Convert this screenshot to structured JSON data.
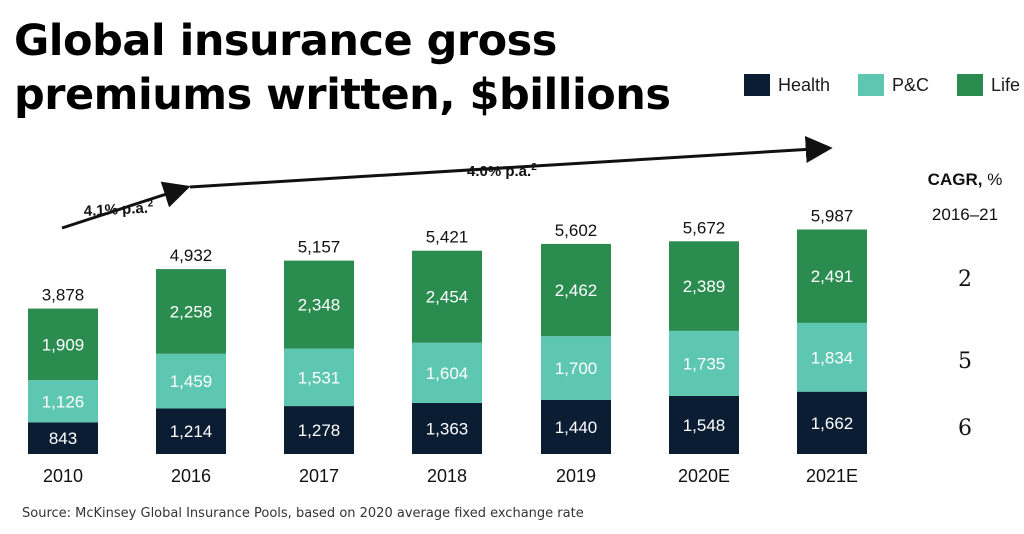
{
  "title": "Global insurance gross premiums written, $billions",
  "legend": [
    {
      "name": "Health",
      "color": "#0b1d33"
    },
    {
      "name": "P&C",
      "color": "#5ec7b1"
    },
    {
      "name": "Life",
      "color": "#2b8c50"
    }
  ],
  "cagr_header": {
    "label": "CAGR,",
    "unit": "%",
    "period": "2016–21"
  },
  "cagr_values": {
    "life": "2",
    "pc": "5",
    "health": "6"
  },
  "growth_annotations": [
    {
      "label": "4.1% p.a.",
      "superscript": "2"
    },
    {
      "label": "4.0% p.a.",
      "superscript": "2"
    }
  ],
  "source": "Source: McKinsey Global Insurance Pools, based on 2020 average fixed exchange rate",
  "chart_data": {
    "type": "bar",
    "stacked": true,
    "categories": [
      "2010",
      "2016",
      "2017",
      "2018",
      "2019",
      "2020E",
      "2021E"
    ],
    "series": [
      {
        "name": "Health",
        "color": "#0b1d33",
        "values": [
          843,
          1214,
          1278,
          1363,
          1440,
          1548,
          1662
        ],
        "labels": [
          "843",
          "1,214",
          "1,278",
          "1,363",
          "1,440",
          "1,548",
          "1,662"
        ]
      },
      {
        "name": "P&C",
        "color": "#5ec7b1",
        "values": [
          1126,
          1459,
          1531,
          1604,
          1700,
          1735,
          1834
        ],
        "labels": [
          "1,126",
          "1,459",
          "1,531",
          "1,604",
          "1,700",
          "1,735",
          "1,834"
        ]
      },
      {
        "name": "Life",
        "color": "#2b8c50",
        "values": [
          1909,
          2258,
          2348,
          2454,
          2462,
          2389,
          2491
        ],
        "labels": [
          "1,909",
          "2,258",
          "2,348",
          "2,454",
          "2,462",
          "2,389",
          "2,491"
        ]
      }
    ],
    "totals": [
      3878,
      4932,
      5157,
      5421,
      5602,
      5672,
      5987
    ],
    "total_labels": [
      "3,878",
      "4,932",
      "5,157",
      "5,421",
      "5,602",
      "5,672",
      "5,987"
    ],
    "title": "Global insurance gross premiums written, $billions",
    "ylim": [
      0,
      6000
    ]
  }
}
